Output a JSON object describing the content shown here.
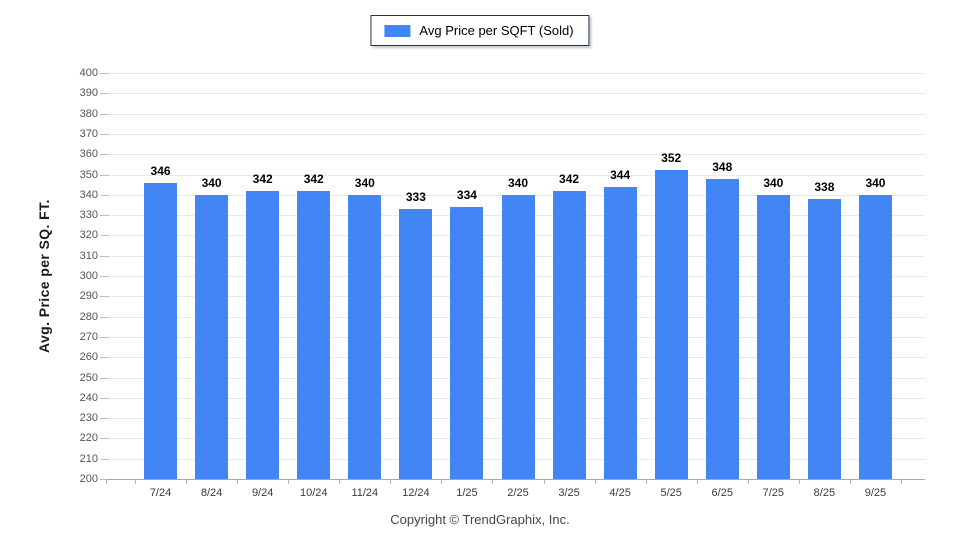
{
  "legend": {
    "label": "Avg Price per SQFT (Sold)",
    "swatch_color": "#4285f4"
  },
  "chart_data": {
    "type": "bar",
    "title": "",
    "categories": [
      "7/24",
      "8/24",
      "9/24",
      "10/24",
      "11/24",
      "12/24",
      "1/25",
      "2/25",
      "3/25",
      "4/25",
      "5/25",
      "6/25",
      "7/25",
      "8/25",
      "9/25"
    ],
    "values": [
      346,
      340,
      342,
      342,
      340,
      333,
      334,
      340,
      342,
      344,
      352,
      348,
      340,
      338,
      340
    ],
    "series_name": "Avg Price per SQFT (Sold)",
    "xlabel": "",
    "ylabel": "Avg. Price per SQ. FT.",
    "ylim": [
      200,
      400
    ],
    "ytick_step": 10,
    "bar_color": "#4285f4",
    "grid": true,
    "legend_position": "top-center",
    "value_labels_shown": true
  },
  "footer": {
    "copyright": "Copyright © TrendGraphix, Inc."
  }
}
